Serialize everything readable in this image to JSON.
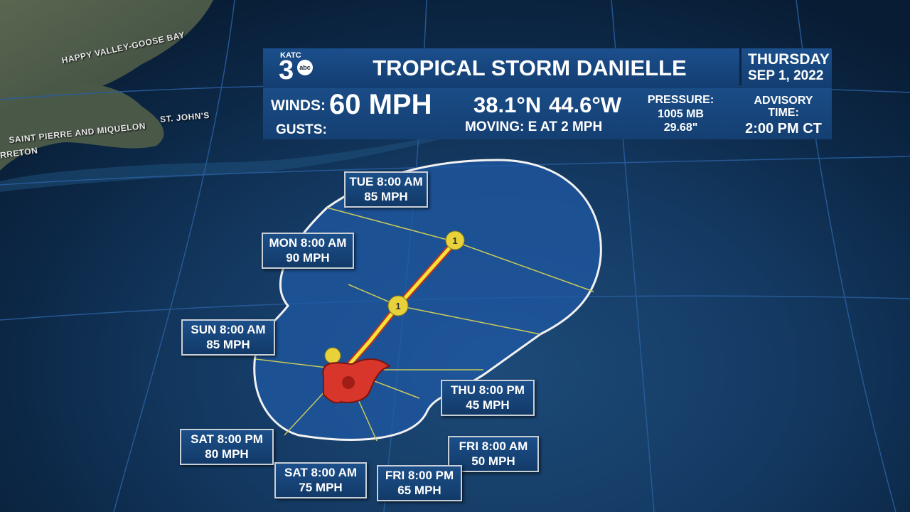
{
  "header": {
    "logo": "KATC",
    "logo_number": "3",
    "logo_network": "abc",
    "title": "TROPICAL STORM DANIELLE",
    "day": "THURSDAY",
    "date": "SEP 1, 2022"
  },
  "stats": {
    "winds_label": "WINDS:",
    "winds": "60 MPH",
    "gusts_label": "GUSTS:",
    "latitude": "38.1°N",
    "longitude": "44.6°W",
    "moving": "MOVING: E AT 2 MPH",
    "pressure_label": "PRESSURE:",
    "pressure_mb": "1005 MB",
    "pressure_in": "29.68\"",
    "advisory_label": [
      "ADVISORY",
      "TIME:"
    ],
    "advisory_time": "2:00 PM CT"
  },
  "map_labels": [
    "HAPPY VALLEY-GOOSE BAY",
    "ST. JOHN'S",
    "SAINT PIERRE AND MIQUELON",
    "RRETON"
  ],
  "storm_icons": [
    {
      "category": "1"
    },
    {
      "category": "1"
    }
  ],
  "forecast_points": [
    {
      "time": "TUE 8:00 AM",
      "wind": "85 MPH"
    },
    {
      "time": "MON 8:00 AM",
      "wind": "90 MPH"
    },
    {
      "time": "SUN 8:00 AM",
      "wind": "85 MPH"
    },
    {
      "time": "THU 8:00 PM",
      "wind": "45 MPH"
    },
    {
      "time": "SAT 8:00 PM",
      "wind": "80 MPH"
    },
    {
      "time": "FRI 8:00 AM",
      "wind": "50 MPH"
    },
    {
      "time": "SAT 8:00 AM",
      "wind": "75 MPH"
    },
    {
      "time": "FRI 8:00 PM",
      "wind": "65 MPH"
    }
  ]
}
